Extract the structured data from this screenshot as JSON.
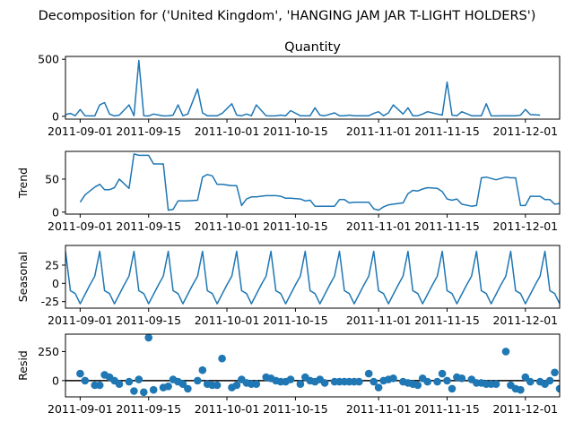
{
  "suptitle": "Decomposition for ('United Kingdom', 'HANGING JAM JAR T-LIGHT HOLDERS')",
  "chart_data": [
    {
      "type": "line",
      "panel": "observed",
      "title": "Quantity",
      "ylabel": "",
      "xlim": [
        "2011-08-29",
        "2011-12-08"
      ],
      "ylim": [
        -25,
        525
      ],
      "yticks": [
        0,
        500
      ],
      "xticks": [
        "2011-09-01",
        "2011-09-15",
        "2011-10-01",
        "2011-10-15",
        "2011-11-01",
        "2011-11-15",
        "2011-12-01"
      ],
      "color": "#1f77b4",
      "points": [
        [
          "2011-08-29",
          15
        ],
        [
          "2011-08-30",
          25
        ],
        [
          "2011-08-31",
          5
        ],
        [
          "2011-09-01",
          60
        ],
        [
          "2011-09-02",
          5
        ],
        [
          "2011-09-04",
          3
        ],
        [
          "2011-09-05",
          100
        ],
        [
          "2011-09-06",
          120
        ],
        [
          "2011-09-07",
          20
        ],
        [
          "2011-09-08",
          3
        ],
        [
          "2011-09-09",
          10
        ],
        [
          "2011-09-11",
          100
        ],
        [
          "2011-09-12",
          5
        ],
        [
          "2011-09-13",
          490
        ],
        [
          "2011-09-14",
          5
        ],
        [
          "2011-09-15",
          3
        ],
        [
          "2011-09-16",
          20
        ],
        [
          "2011-09-18",
          3
        ],
        [
          "2011-09-19",
          5
        ],
        [
          "2011-09-20",
          10
        ],
        [
          "2011-09-21",
          100
        ],
        [
          "2011-09-22",
          5
        ],
        [
          "2011-09-23",
          20
        ],
        [
          "2011-09-25",
          240
        ],
        [
          "2011-09-26",
          30
        ],
        [
          "2011-09-27",
          5
        ],
        [
          "2011-09-28",
          5
        ],
        [
          "2011-09-29",
          5
        ],
        [
          "2011-09-30",
          25
        ],
        [
          "2011-10-02",
          110
        ],
        [
          "2011-10-03",
          10
        ],
        [
          "2011-10-04",
          5
        ],
        [
          "2011-10-05",
          20
        ],
        [
          "2011-10-06",
          5
        ],
        [
          "2011-10-07",
          100
        ],
        [
          "2011-10-09",
          5
        ],
        [
          "2011-10-10",
          3
        ],
        [
          "2011-10-11",
          5
        ],
        [
          "2011-10-12",
          10
        ],
        [
          "2011-10-13",
          5
        ],
        [
          "2011-10-14",
          50
        ],
        [
          "2011-10-16",
          5
        ],
        [
          "2011-10-17",
          5
        ],
        [
          "2011-10-18",
          5
        ],
        [
          "2011-10-19",
          75
        ],
        [
          "2011-10-20",
          10
        ],
        [
          "2011-10-21",
          5
        ],
        [
          "2011-10-23",
          30
        ],
        [
          "2011-10-24",
          5
        ],
        [
          "2011-10-25",
          5
        ],
        [
          "2011-10-26",
          10
        ],
        [
          "2011-10-27",
          5
        ],
        [
          "2011-10-28",
          5
        ],
        [
          "2011-10-30",
          5
        ],
        [
          "2011-10-31",
          25
        ],
        [
          "2011-11-01",
          40
        ],
        [
          "2011-11-02",
          5
        ],
        [
          "2011-11-03",
          30
        ],
        [
          "2011-11-04",
          100
        ],
        [
          "2011-11-06",
          20
        ],
        [
          "2011-11-07",
          75
        ],
        [
          "2011-11-08",
          5
        ],
        [
          "2011-11-09",
          5
        ],
        [
          "2011-11-10",
          20
        ],
        [
          "2011-11-11",
          40
        ],
        [
          "2011-11-13",
          20
        ],
        [
          "2011-11-14",
          10
        ],
        [
          "2011-11-15",
          300
        ],
        [
          "2011-11-16",
          10
        ],
        [
          "2011-11-17",
          5
        ],
        [
          "2011-11-18",
          40
        ],
        [
          "2011-11-20",
          5
        ],
        [
          "2011-11-21",
          5
        ],
        [
          "2011-11-22",
          5
        ],
        [
          "2011-11-23",
          110
        ],
        [
          "2011-11-24",
          5
        ],
        [
          "2011-11-25",
          3
        ],
        [
          "2011-11-27",
          5
        ],
        [
          "2011-11-28",
          5
        ],
        [
          "2011-11-29",
          5
        ],
        [
          "2011-11-30",
          10
        ],
        [
          "2011-12-01",
          60
        ],
        [
          "2011-12-02",
          15
        ],
        [
          "2011-12-04",
          10
        ]
      ]
    },
    {
      "type": "line",
      "panel": "trend",
      "title": "",
      "ylabel": "Trend",
      "xlim": [
        "2011-08-29",
        "2011-12-08"
      ],
      "ylim": [
        -3,
        92
      ],
      "yticks": [
        0,
        50
      ],
      "xticks": [
        "2011-09-01",
        "2011-09-15",
        "2011-10-01",
        "2011-10-15",
        "2011-11-01",
        "2011-11-15",
        "2011-12-01"
      ],
      "color": "#1f77b4",
      "points": [
        [
          "2011-09-01",
          15
        ],
        [
          "2011-09-02",
          26
        ],
        [
          "2011-09-04",
          38
        ],
        [
          "2011-09-05",
          42
        ],
        [
          "2011-09-06",
          34
        ],
        [
          "2011-09-07",
          34
        ],
        [
          "2011-09-08",
          37
        ],
        [
          "2011-09-09",
          50
        ],
        [
          "2011-09-11",
          36
        ],
        [
          "2011-09-12",
          88
        ],
        [
          "2011-09-13",
          86
        ],
        [
          "2011-09-14",
          86
        ],
        [
          "2011-09-15",
          86
        ],
        [
          "2011-09-16",
          73
        ],
        [
          "2011-09-18",
          73
        ],
        [
          "2011-09-19",
          3
        ],
        [
          "2011-09-20",
          4
        ],
        [
          "2011-09-21",
          17
        ],
        [
          "2011-09-22",
          17
        ],
        [
          "2011-09-23",
          17
        ],
        [
          "2011-09-25",
          18
        ],
        [
          "2011-09-26",
          53
        ],
        [
          "2011-09-27",
          57
        ],
        [
          "2011-09-28",
          55
        ],
        [
          "2011-09-29",
          42
        ],
        [
          "2011-09-30",
          42
        ],
        [
          "2011-10-02",
          40
        ],
        [
          "2011-10-03",
          40
        ],
        [
          "2011-10-04",
          10
        ],
        [
          "2011-10-05",
          20
        ],
        [
          "2011-10-06",
          23
        ],
        [
          "2011-10-07",
          23
        ],
        [
          "2011-10-09",
          25
        ],
        [
          "2011-10-10",
          25
        ],
        [
          "2011-10-11",
          25
        ],
        [
          "2011-10-12",
          24
        ],
        [
          "2011-10-13",
          21
        ],
        [
          "2011-10-14",
          21
        ],
        [
          "2011-10-16",
          20
        ],
        [
          "2011-10-17",
          17
        ],
        [
          "2011-10-18",
          18
        ],
        [
          "2011-10-19",
          9
        ],
        [
          "2011-10-20",
          9
        ],
        [
          "2011-10-21",
          9
        ],
        [
          "2011-10-23",
          9
        ],
        [
          "2011-10-24",
          19
        ],
        [
          "2011-10-25",
          19
        ],
        [
          "2011-10-26",
          14
        ],
        [
          "2011-10-27",
          15
        ],
        [
          "2011-10-28",
          15
        ],
        [
          "2011-10-30",
          15
        ],
        [
          "2011-10-31",
          5
        ],
        [
          "2011-11-01",
          3
        ],
        [
          "2011-11-02",
          8
        ],
        [
          "2011-11-03",
          11
        ],
        [
          "2011-11-04",
          12
        ],
        [
          "2011-11-06",
          14
        ],
        [
          "2011-11-07",
          28
        ],
        [
          "2011-11-08",
          33
        ],
        [
          "2011-11-09",
          32
        ],
        [
          "2011-11-10",
          35
        ],
        [
          "2011-11-11",
          37
        ],
        [
          "2011-11-13",
          36
        ],
        [
          "2011-11-14",
          31
        ],
        [
          "2011-11-15",
          20
        ],
        [
          "2011-11-16",
          18
        ],
        [
          "2011-11-17",
          20
        ],
        [
          "2011-11-18",
          12
        ],
        [
          "2011-11-20",
          9
        ],
        [
          "2011-11-21",
          10
        ],
        [
          "2011-11-22",
          52
        ],
        [
          "2011-11-23",
          53
        ],
        [
          "2011-11-24",
          51
        ],
        [
          "2011-11-25",
          49
        ],
        [
          "2011-11-27",
          53
        ],
        [
          "2011-11-28",
          52
        ],
        [
          "2011-11-29",
          52
        ],
        [
          "2011-11-30",
          10
        ],
        [
          "2011-12-01",
          10
        ],
        [
          "2011-12-02",
          24
        ],
        [
          "2011-12-04",
          24
        ],
        [
          "2011-12-05",
          19
        ],
        [
          "2011-12-06",
          19
        ],
        [
          "2011-12-07",
          12
        ],
        [
          "2011-12-08",
          13
        ]
      ]
    },
    {
      "type": "line",
      "panel": "seasonal",
      "title": "",
      "ylabel": "Seasonal",
      "xlim": [
        "2011-08-29",
        "2011-12-08"
      ],
      "ylim": [
        -34,
        52
      ],
      "yticks": [
        -25,
        0,
        25
      ],
      "xticks": [
        "2011-09-01",
        "2011-09-15",
        "2011-10-01",
        "2011-10-15",
        "2011-11-01",
        "2011-11-15",
        "2011-12-01"
      ],
      "color": "#1f77b4",
      "period_offsets_days": [
        0,
        1,
        2,
        3,
        5,
        6
      ],
      "period_values": [
        44,
        -10,
        -14,
        -28,
        -2,
        10
      ],
      "first_cycle_start": "2011-08-29",
      "cycles": 15
    },
    {
      "type": "scatter",
      "panel": "resid",
      "title": "",
      "ylabel": "Resid",
      "xlim": [
        "2011-08-29",
        "2011-12-08"
      ],
      "ylim": [
        -140,
        400
      ],
      "yticks": [
        0,
        250
      ],
      "xticks": [
        "2011-09-01",
        "2011-09-15",
        "2011-10-01",
        "2011-10-15",
        "2011-11-01",
        "2011-11-15",
        "2011-12-01"
      ],
      "color": "#1f77b4",
      "baseline": 0,
      "points": [
        [
          "2011-09-01",
          60
        ],
        [
          "2011-09-02",
          0
        ],
        [
          "2011-09-04",
          -40
        ],
        [
          "2011-09-05",
          -40
        ],
        [
          "2011-09-06",
          50
        ],
        [
          "2011-09-07",
          30
        ],
        [
          "2011-09-08",
          0
        ],
        [
          "2011-09-09",
          -30
        ],
        [
          "2011-09-11",
          -10
        ],
        [
          "2011-09-12",
          -90
        ],
        [
          "2011-09-13",
          10
        ],
        [
          "2011-09-14",
          -100
        ],
        [
          "2011-09-15",
          370
        ],
        [
          "2011-09-16",
          -80
        ],
        [
          "2011-09-18",
          -60
        ],
        [
          "2011-09-19",
          -50
        ],
        [
          "2011-09-20",
          10
        ],
        [
          "2011-09-21",
          -10
        ],
        [
          "2011-09-22",
          -30
        ],
        [
          "2011-09-23",
          -70
        ],
        [
          "2011-09-25",
          0
        ],
        [
          "2011-09-26",
          90
        ],
        [
          "2011-09-27",
          -30
        ],
        [
          "2011-09-28",
          -40
        ],
        [
          "2011-09-29",
          -40
        ],
        [
          "2011-09-30",
          190
        ],
        [
          "2011-10-02",
          -60
        ],
        [
          "2011-10-03",
          -40
        ],
        [
          "2011-10-04",
          10
        ],
        [
          "2011-10-05",
          -20
        ],
        [
          "2011-10-06",
          -30
        ],
        [
          "2011-10-07",
          -30
        ],
        [
          "2011-10-09",
          30
        ],
        [
          "2011-10-10",
          20
        ],
        [
          "2011-10-11",
          0
        ],
        [
          "2011-10-12",
          -10
        ],
        [
          "2011-10-13",
          -10
        ],
        [
          "2011-10-14",
          10
        ],
        [
          "2011-10-16",
          -30
        ],
        [
          "2011-10-17",
          30
        ],
        [
          "2011-10-18",
          0
        ],
        [
          "2011-10-19",
          -10
        ],
        [
          "2011-10-20",
          10
        ],
        [
          "2011-10-21",
          -20
        ],
        [
          "2011-10-23",
          -10
        ],
        [
          "2011-10-24",
          -10
        ],
        [
          "2011-10-25",
          -10
        ],
        [
          "2011-10-26",
          -10
        ],
        [
          "2011-10-27",
          -10
        ],
        [
          "2011-10-28",
          -10
        ],
        [
          "2011-10-30",
          60
        ],
        [
          "2011-10-31",
          -10
        ],
        [
          "2011-11-01",
          -60
        ],
        [
          "2011-11-02",
          0
        ],
        [
          "2011-11-03",
          10
        ],
        [
          "2011-11-04",
          20
        ],
        [
          "2011-11-06",
          -10
        ],
        [
          "2011-11-07",
          -20
        ],
        [
          "2011-11-08",
          -30
        ],
        [
          "2011-11-09",
          -40
        ],
        [
          "2011-11-10",
          20
        ],
        [
          "2011-11-11",
          -10
        ],
        [
          "2011-11-13",
          -10
        ],
        [
          "2011-11-14",
          60
        ],
        [
          "2011-11-15",
          0
        ],
        [
          "2011-11-16",
          -70
        ],
        [
          "2011-11-17",
          30
        ],
        [
          "2011-11-18",
          20
        ],
        [
          "2011-11-20",
          10
        ],
        [
          "2011-11-21",
          -20
        ],
        [
          "2011-11-22",
          -20
        ],
        [
          "2011-11-23",
          -30
        ],
        [
          "2011-11-24",
          -30
        ],
        [
          "2011-11-25",
          -30
        ],
        [
          "2011-11-27",
          250
        ],
        [
          "2011-11-28",
          -40
        ],
        [
          "2011-11-29",
          -70
        ],
        [
          "2011-11-30",
          -80
        ],
        [
          "2011-12-01",
          30
        ],
        [
          "2011-12-02",
          -10
        ],
        [
          "2011-12-04",
          -10
        ],
        [
          "2011-12-05",
          -30
        ],
        [
          "2011-12-06",
          0
        ],
        [
          "2011-12-07",
          70
        ],
        [
          "2011-12-08",
          -70
        ]
      ]
    }
  ]
}
